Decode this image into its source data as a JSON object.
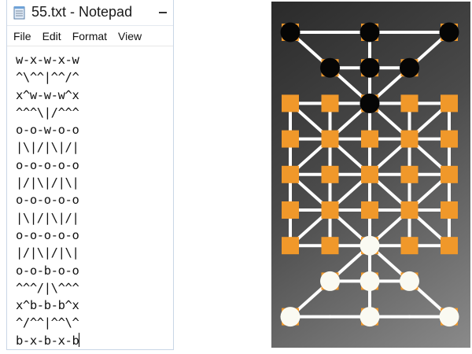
{
  "window": {
    "title": "55.txt - Notepad",
    "app_icon": "notepad-icon",
    "minimize_icon": "minimize-icon"
  },
  "menu": [
    "File",
    "Edit",
    "Format",
    "View"
  ],
  "editor": {
    "lines": [
      "w-x-w-x-w",
      "^\\^^|^^/^",
      "x^w-w-w^x",
      "^^^\\|/^^^",
      "o-o-w-o-o",
      "|\\|/|\\|/|",
      "o-o-o-o-o",
      "|/|\\|/|\\|",
      "o-o-o-o-o",
      "|\\|/|\\|/|",
      "o-o-o-o-o",
      "|/|\\|/|\\|",
      "o-o-b-o-o",
      "^^^/|\\^^^",
      "x^b-b-b^x",
      "^/^^|^^\\^",
      "b-x-b-x-b"
    ]
  },
  "board": {
    "colors": {
      "black_piece": "#050505",
      "white_piece": "#fafaf2",
      "empty_point": "#f0982a",
      "line": "#ffffff"
    }
  }
}
